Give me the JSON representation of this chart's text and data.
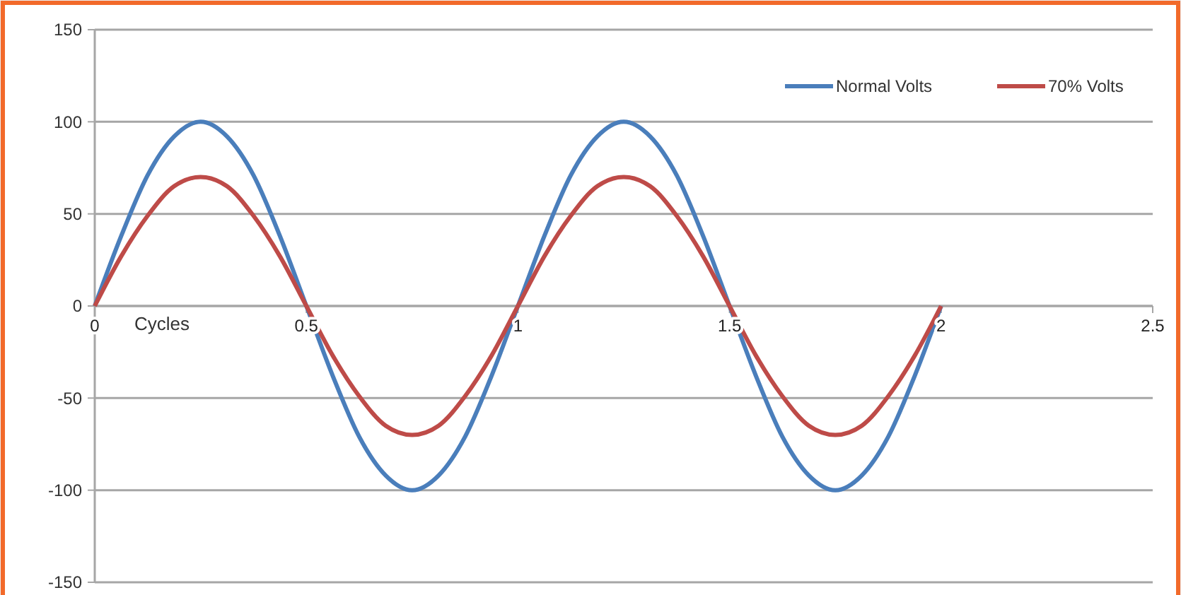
{
  "chart_data": {
    "type": "line",
    "xlabel": "Cycles",
    "x": [
      0,
      0.0625,
      0.125,
      0.1875,
      0.25,
      0.3125,
      0.375,
      0.4375,
      0.5,
      0.5625,
      0.625,
      0.6875,
      0.75,
      0.8125,
      0.875,
      0.9375,
      1,
      1.0625,
      1.125,
      1.1875,
      1.25,
      1.3125,
      1.375,
      1.4375,
      1.5,
      1.5625,
      1.625,
      1.6875,
      1.75,
      1.8125,
      1.875,
      1.9375,
      2
    ],
    "series": [
      {
        "name": "Normal Volts",
        "color": "#4a7ebb",
        "values": [
          0,
          38,
          71,
          92,
          100,
          92,
          71,
          38,
          0,
          -38,
          -71,
          -92,
          -100,
          -92,
          -71,
          -38,
          0,
          38,
          71,
          92,
          100,
          92,
          71,
          38,
          0,
          -38,
          -71,
          -92,
          -100,
          -92,
          -71,
          -38,
          0
        ]
      },
      {
        "name": "70% Volts",
        "color": "#be4b48",
        "values": [
          0,
          27,
          49,
          65,
          70,
          65,
          49,
          27,
          0,
          -27,
          -49,
          -65,
          -70,
          -65,
          -49,
          -27,
          0,
          27,
          49,
          65,
          70,
          65,
          49,
          27,
          0,
          -27,
          -49,
          -65,
          -70,
          -65,
          -49,
          -27,
          0
        ]
      }
    ],
    "xlim": [
      0,
      2.5
    ],
    "xticks": [
      0,
      0.5,
      1,
      1.5,
      2,
      2.5
    ],
    "ylim": [
      -150,
      150
    ],
    "yticks": [
      -150,
      -100,
      -50,
      0,
      50,
      100,
      150
    ],
    "grid": "y",
    "legend": "top right",
    "marker": "none",
    "line_style": "solid"
  }
}
